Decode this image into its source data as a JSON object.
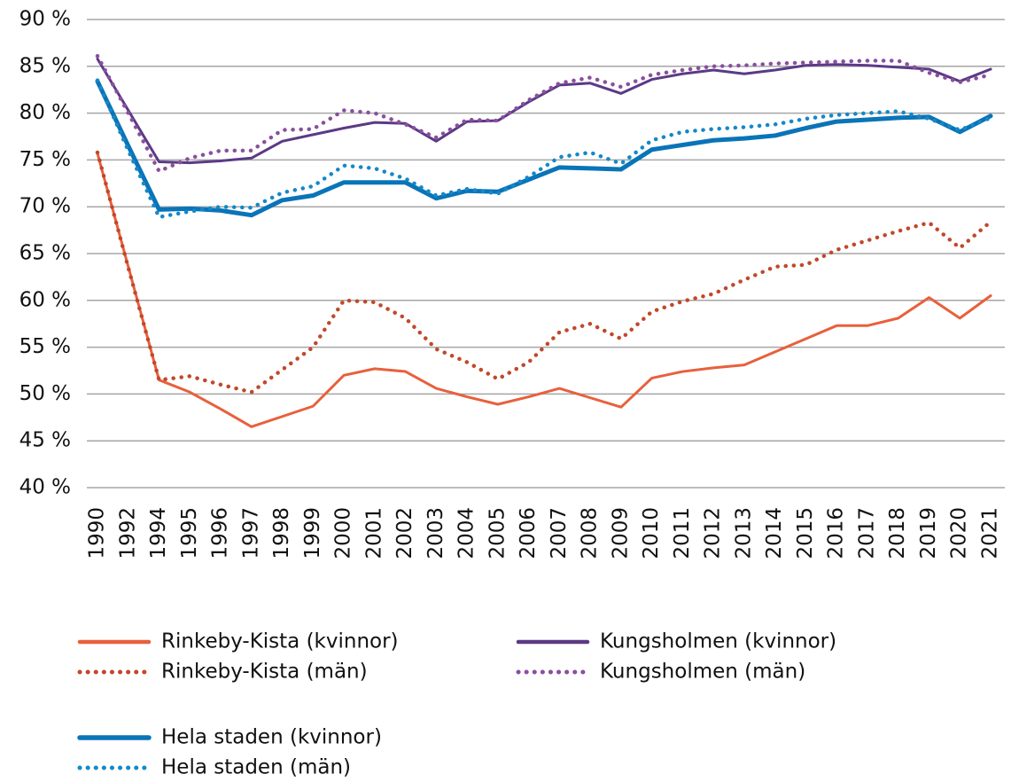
{
  "chart_data": {
    "type": "line",
    "categories": [
      "1990",
      "1992",
      "1994",
      "1995",
      "1996",
      "1997",
      "1998",
      "1999",
      "2000",
      "2001",
      "2002",
      "2003",
      "2004",
      "2005",
      "2006",
      "2007",
      "2008",
      "2009",
      "2010",
      "2011",
      "2012",
      "2013",
      "2014",
      "2015",
      "2016",
      "2017",
      "2018",
      "2019",
      "2020",
      "2021"
    ],
    "ylim": [
      40,
      90
    ],
    "yticks": [
      {
        "value": 40,
        "label": "40 %"
      },
      {
        "value": 45,
        "label": "45 %"
      },
      {
        "value": 50,
        "label": "50 %"
      },
      {
        "value": 55,
        "label": "55 %"
      },
      {
        "value": 60,
        "label": "60 %"
      },
      {
        "value": 65,
        "label": "65 %"
      },
      {
        "value": 70,
        "label": "70 %"
      },
      {
        "value": 75,
        "label": "75 %"
      },
      {
        "value": 80,
        "label": "80 %"
      },
      {
        "value": 85,
        "label": "85 %"
      },
      {
        "value": 90,
        "label": "90 %"
      }
    ],
    "grid": true,
    "legend": "bottom",
    "series": [
      {
        "name": "Rinkeby-Kista (kvinnor)",
        "color": "#e8603c",
        "linestyle": "solid",
        "values": [
          75.7,
          63.6,
          51.5,
          50.2,
          48.4,
          46.5,
          47.6,
          48.7,
          52.0,
          52.7,
          52.4,
          50.6,
          49.7,
          48.9,
          49.7,
          50.6,
          49.6,
          48.6,
          51.7,
          52.4,
          52.8,
          53.1,
          54.5,
          55.9,
          57.3,
          57.3,
          58.1,
          60.3,
          58.1,
          60.5
        ]
      },
      {
        "name": "Rinkeby-Kista (män)",
        "color": "#c0492b",
        "linestyle": "dotted",
        "values": [
          75.8,
          63.5,
          51.5,
          51.9,
          51.0,
          50.2,
          52.6,
          55.0,
          60.0,
          59.8,
          58.1,
          54.8,
          53.4,
          51.6,
          53.4,
          56.6,
          57.5,
          55.9,
          58.8,
          59.9,
          60.7,
          62.2,
          63.6,
          63.8,
          65.4,
          66.4,
          67.4,
          68.3,
          65.6,
          68.4
        ]
      },
      {
        "name": "Kungsholmen (kvinnor)",
        "color": "#5b3a86",
        "linestyle": "solid",
        "values": [
          85.8,
          80.3,
          74.8,
          74.7,
          74.9,
          75.2,
          77.0,
          77.7,
          78.4,
          79.0,
          78.9,
          77.0,
          79.1,
          79.2,
          81.2,
          83.0,
          83.2,
          82.1,
          83.6,
          84.2,
          84.6,
          84.2,
          84.6,
          85.1,
          85.2,
          85.1,
          84.9,
          84.7,
          83.4,
          84.7
        ]
      },
      {
        "name": "Kungsholmen (män)",
        "color": "#8a4f9e",
        "linestyle": "dotted",
        "values": [
          86.1,
          80.0,
          73.8,
          75.2,
          76.0,
          76.0,
          78.2,
          78.3,
          80.3,
          80.0,
          78.8,
          77.4,
          79.3,
          79.2,
          81.4,
          83.2,
          83.8,
          82.8,
          84.1,
          84.6,
          85.0,
          85.1,
          85.3,
          85.4,
          85.5,
          85.6,
          85.6,
          84.3,
          83.3,
          84.1
        ]
      },
      {
        "name": "Hela staden (kvinnor)",
        "color": "#0a74b8",
        "linestyle": "solid",
        "values": [
          83.4,
          76.5,
          69.7,
          69.8,
          69.6,
          69.1,
          70.7,
          71.2,
          72.6,
          72.6,
          72.6,
          70.9,
          71.7,
          71.6,
          72.9,
          74.2,
          74.1,
          74.0,
          76.1,
          76.6,
          77.1,
          77.3,
          77.6,
          78.4,
          79.1,
          79.3,
          79.5,
          79.6,
          78.0,
          79.7
        ]
      },
      {
        "name": "Hela staden (män)",
        "color": "#1488c8",
        "linestyle": "dotted",
        "values": [
          83.5,
          76.0,
          68.9,
          69.5,
          70.0,
          69.9,
          71.5,
          72.2,
          74.4,
          74.1,
          73.0,
          71.2,
          71.9,
          71.4,
          73.2,
          75.3,
          75.8,
          74.6,
          77.1,
          78.0,
          78.3,
          78.5,
          78.8,
          79.4,
          79.8,
          80.0,
          80.2,
          79.4,
          78.2,
          79.5
        ]
      }
    ]
  }
}
